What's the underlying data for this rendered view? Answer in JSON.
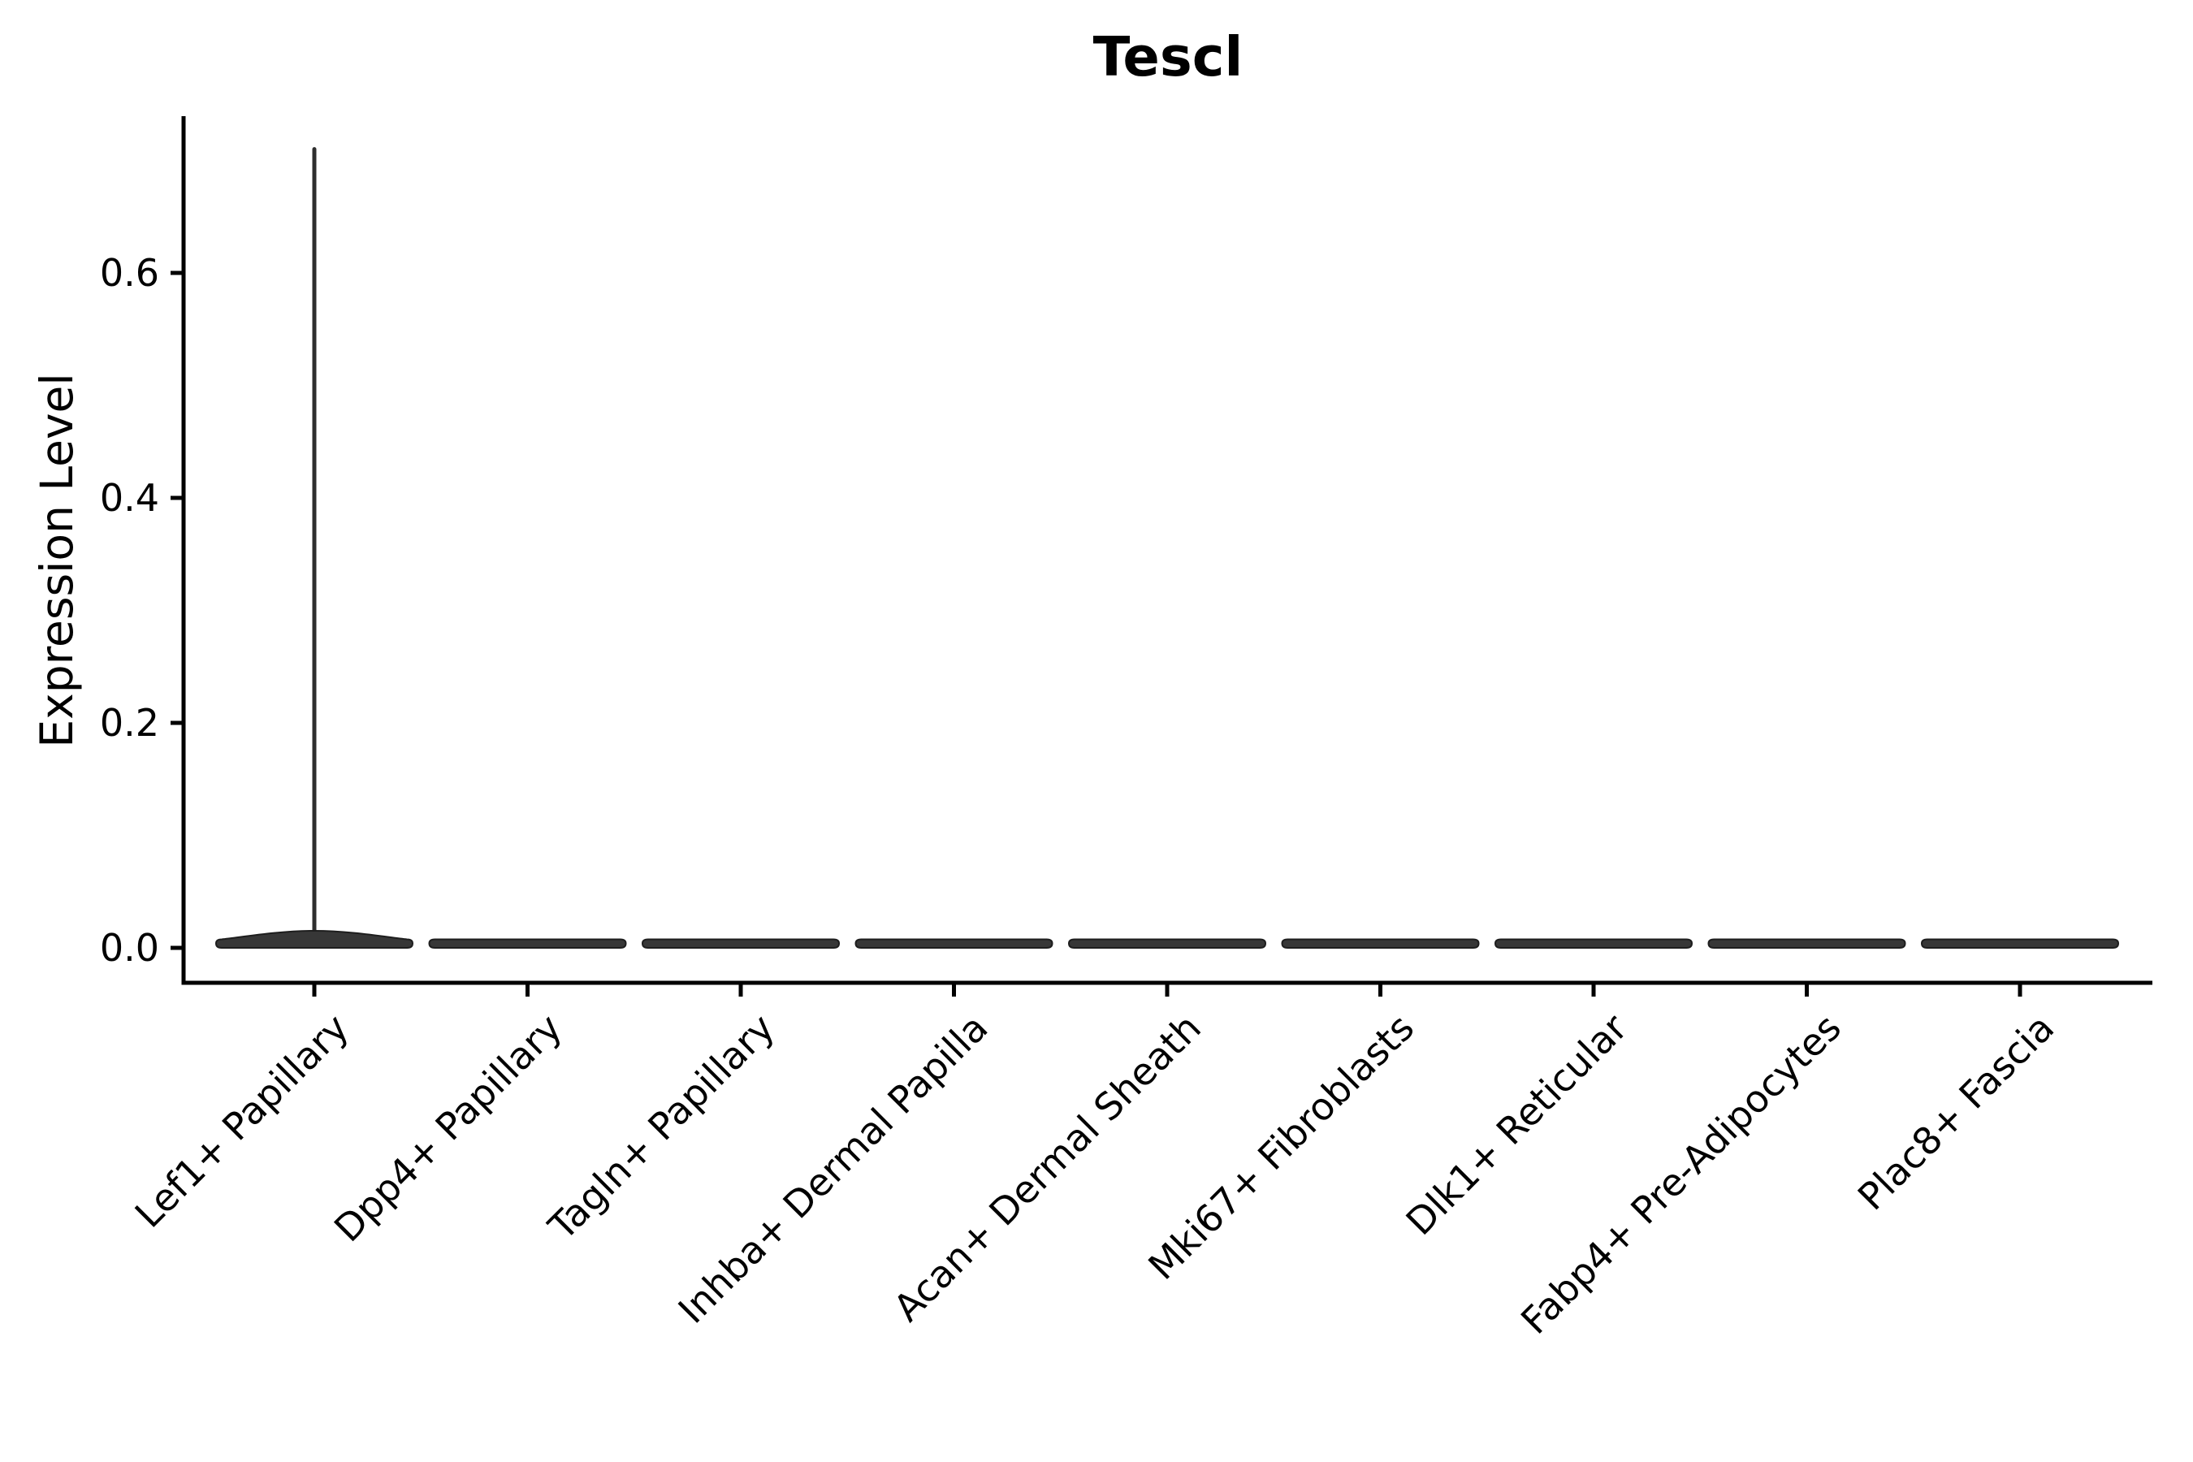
{
  "figure": {
    "background": "#ffffff",
    "title": "Tescl"
  },
  "chart_data": {
    "type": "violin",
    "title": "Tescl",
    "xlabel": "",
    "ylabel": "Expression Level",
    "ylim": [
      -0.03,
      0.74
    ],
    "y_ticks": [
      0.0,
      0.2,
      0.4,
      0.6
    ],
    "y_tick_labels": [
      "0.0",
      "0.2",
      "0.4",
      "0.6"
    ],
    "grid": false,
    "legend": null,
    "categories": [
      "Lef1+ Papillary",
      "Dpp4+ Papillary",
      "Tagln+ Papillary",
      "Inhba+ Dermal Papilla",
      "Acan+ Dermal Sheath",
      "Mki67+ Fibroblasts",
      "Dlk1+ Reticular",
      "Fabp4+ Pre-Adipocytes",
      "Plac8+ Fascia"
    ],
    "violins": [
      {
        "category": "Lef1+ Papillary",
        "min": 0.0,
        "max": 0.71,
        "median": 0.0,
        "spike": true,
        "bulk_at": 0.0
      },
      {
        "category": "Dpp4+ Papillary",
        "min": 0.0,
        "max": 0.0,
        "median": 0.0,
        "spike": false,
        "bulk_at": 0.0
      },
      {
        "category": "Tagln+ Papillary",
        "min": 0.0,
        "max": 0.0,
        "median": 0.0,
        "spike": false,
        "bulk_at": 0.0
      },
      {
        "category": "Inhba+ Dermal Papilla",
        "min": 0.0,
        "max": 0.0,
        "median": 0.0,
        "spike": false,
        "bulk_at": 0.0
      },
      {
        "category": "Acan+ Dermal Sheath",
        "min": 0.0,
        "max": 0.0,
        "median": 0.0,
        "spike": false,
        "bulk_at": 0.0
      },
      {
        "category": "Mki67+ Fibroblasts",
        "min": 0.0,
        "max": 0.0,
        "median": 0.0,
        "spike": false,
        "bulk_at": 0.0
      },
      {
        "category": "Dlk1+ Reticular",
        "min": 0.0,
        "max": 0.0,
        "median": 0.0,
        "spike": false,
        "bulk_at": 0.0
      },
      {
        "category": "Fabp4+ Pre-Adipocytes",
        "min": 0.0,
        "max": 0.0,
        "median": 0.0,
        "spike": false,
        "bulk_at": 0.0
      },
      {
        "category": "Plac8+ Fascia",
        "min": 0.0,
        "max": 0.0,
        "median": 0.0,
        "spike": false,
        "bulk_at": 0.0
      }
    ],
    "colors": {
      "violin_fill": "#373737",
      "violin_edge": "#1e1e1e",
      "spike": "#2e2e2e",
      "axis": "#000000",
      "text": "#000000",
      "background": "#ffffff"
    }
  }
}
